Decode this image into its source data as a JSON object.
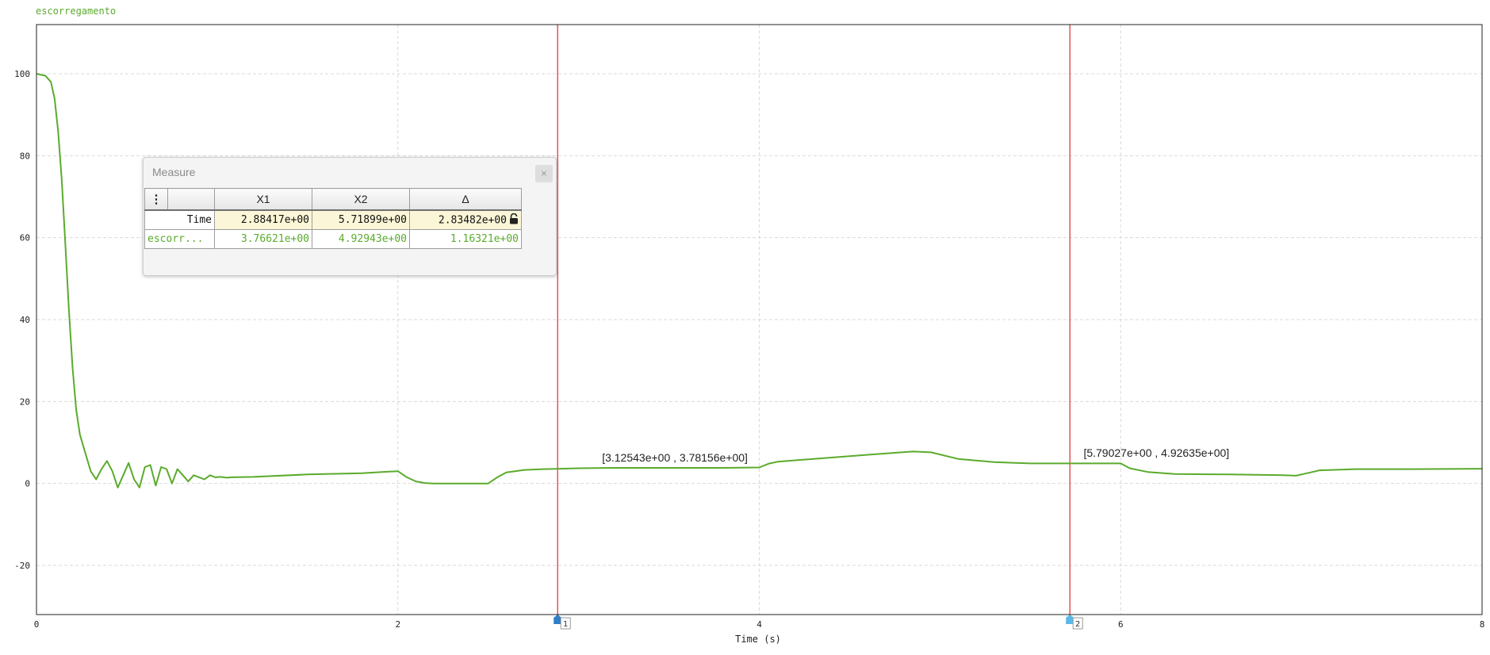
{
  "chart_data": {
    "type": "line",
    "title": "escorregamento",
    "xlabel": "Time (s)",
    "ylabel": "",
    "xlim": [
      0,
      8
    ],
    "ylim": [
      -32,
      112
    ],
    "xticks": [
      "0",
      "2",
      "4",
      "6",
      "8"
    ],
    "yticks": [
      "-20",
      "0",
      "20",
      "40",
      "60",
      "80",
      "100"
    ],
    "xtick_values": [
      0,
      2,
      4,
      6,
      8
    ],
    "ytick_values": [
      -20,
      0,
      20,
      40,
      60,
      80,
      100
    ],
    "grid": true,
    "colors": {
      "series": "#5aab2c",
      "cursor": "#e23b3b",
      "title": "#5aab2c"
    },
    "series": [
      {
        "name": "escorregamento",
        "x": [
          0,
          0.05,
          0.08,
          0.1,
          0.12,
          0.14,
          0.16,
          0.18,
          0.2,
          0.22,
          0.24,
          0.26,
          0.28,
          0.3,
          0.33,
          0.36,
          0.39,
          0.42,
          0.45,
          0.48,
          0.51,
          0.54,
          0.57,
          0.6,
          0.63,
          0.66,
          0.69,
          0.72,
          0.75,
          0.78,
          0.81,
          0.84,
          0.87,
          0.9,
          0.93,
          0.96,
          0.99,
          1.02,
          1.05,
          1.08,
          1.2,
          1.5,
          1.8,
          1.95,
          2.0,
          2.05,
          2.1,
          2.15,
          2.2,
          2.3,
          2.4,
          2.5,
          2.55,
          2.6,
          2.7,
          2.8,
          2.9,
          3.0,
          3.2,
          3.5,
          3.8,
          4.0,
          4.05,
          4.1,
          4.3,
          4.6,
          4.85,
          4.95,
          5.1,
          5.3,
          5.5,
          5.8,
          6.0,
          6.05,
          6.15,
          6.3,
          6.6,
          6.9,
          6.97,
          7.03,
          7.1,
          7.3,
          7.6,
          8.0
        ],
        "values": [
          100,
          99.5,
          98,
          94,
          86,
          74,
          58,
          42,
          28,
          18,
          12,
          9,
          6,
          3,
          1,
          3.5,
          5.5,
          3,
          -1,
          2,
          5,
          1,
          -1,
          4,
          4.5,
          -0.5,
          4,
          3.5,
          0,
          3.5,
          2,
          0.5,
          2,
          1.5,
          1,
          2,
          1.5,
          1.6,
          1.4,
          1.5,
          1.6,
          2.2,
          2.5,
          2.9,
          3.0,
          1.5,
          0.5,
          0.1,
          0,
          0,
          0,
          0,
          1.5,
          2.7,
          3.3,
          3.5,
          3.6,
          3.7,
          3.8,
          3.8,
          3.8,
          3.9,
          4.8,
          5.3,
          6.0,
          7.0,
          7.8,
          7.6,
          6.0,
          5.2,
          4.9,
          4.9,
          4.9,
          3.7,
          2.8,
          2.3,
          2.2,
          2.0,
          1.9,
          2.5,
          3.2,
          3.5,
          3.5,
          3.6
        ]
      }
    ],
    "cursors": [
      {
        "x": 2.88417,
        "marker": "1"
      },
      {
        "x": 5.71899,
        "marker": "2"
      }
    ],
    "annotations": [
      {
        "x": 3.12543,
        "y": 3.78156,
        "text": "[3.12543e+00 , 3.78156e+00]"
      },
      {
        "x": 5.79027,
        "y": 4.92635,
        "text": "[5.79027e+00 , 4.92635e+00]"
      }
    ]
  },
  "measure": {
    "title": "Measure",
    "close_label": "×",
    "menu_label": "⋮",
    "headers": [
      "X1",
      "X2",
      "Δ"
    ],
    "rows": [
      {
        "name": "Time",
        "x1": "2.88417e+00",
        "x2": "5.71899e+00",
        "delta": "2.83482e+00"
      },
      {
        "name": "escorr...",
        "x1": "3.76621e+00",
        "x2": "4.92943e+00",
        "delta": "1.16321e+00"
      }
    ]
  }
}
